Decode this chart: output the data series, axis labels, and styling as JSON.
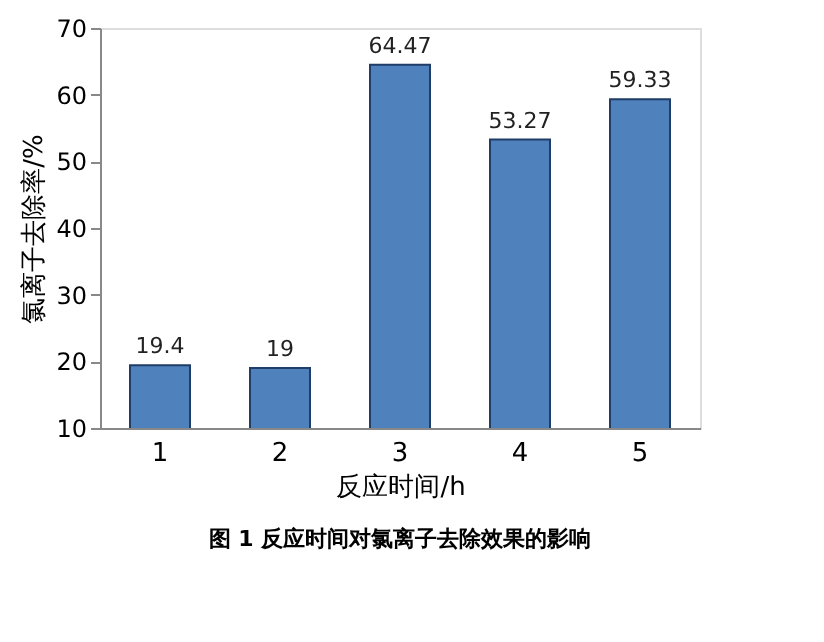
{
  "chart_data": {
    "type": "bar",
    "categories": [
      "1",
      "2",
      "3",
      "4",
      "5"
    ],
    "values": [
      19.4,
      19,
      64.47,
      53.27,
      59.33
    ],
    "color": "#4f81bd",
    "ylim": [
      10,
      70
    ],
    "yticks": [
      10,
      20,
      30,
      40,
      50,
      60,
      70
    ],
    "xlabel": "反应时间/h",
    "ylabel": "氯离子去除率/%",
    "annotations": [
      "图 1   反应时间对氯离子去除效果的影响"
    ],
    "data_labels": true,
    "grid": false
  }
}
